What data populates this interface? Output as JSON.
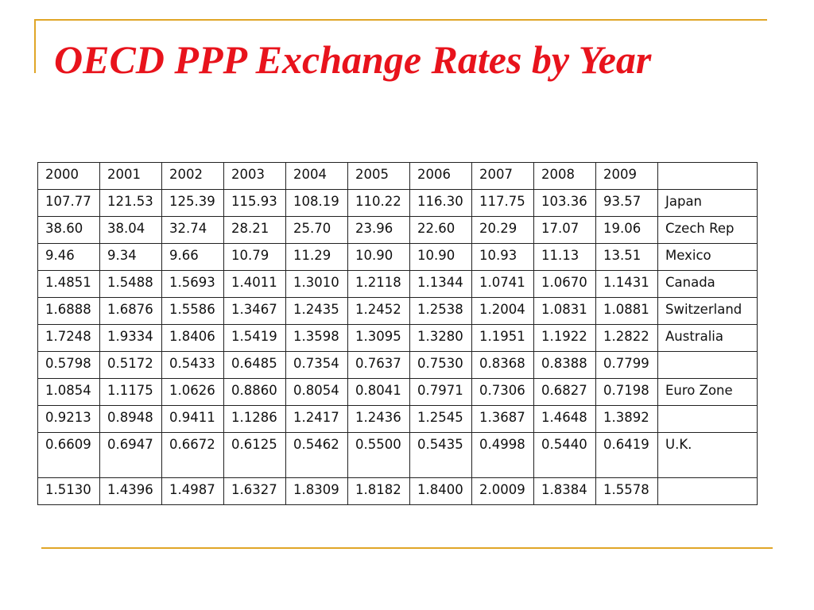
{
  "title": "OECD PPP Exchange Rates by Year",
  "table": {
    "header": [
      "2000",
      "2001",
      "2002",
      "2003",
      "2004",
      "2005",
      "2006",
      "2007",
      "2008",
      "2009",
      ""
    ],
    "rows": [
      {
        "values": [
          "107.77",
          "121.53",
          "125.39",
          "115.93",
          "108.19",
          "110.22",
          "116.30",
          "117.75",
          "103.36",
          "93.57"
        ],
        "country": "Japan"
      },
      {
        "values": [
          "38.60",
          "38.04",
          "32.74",
          "28.21",
          "25.70",
          "23.96",
          "22.60",
          "20.29",
          "17.07",
          "19.06"
        ],
        "country": "Czech Rep"
      },
      {
        "values": [
          "9.46",
          "9.34",
          "9.66",
          "10.79",
          "11.29",
          "10.90",
          "10.90",
          "10.93",
          "11.13",
          "13.51"
        ],
        "country": "Mexico"
      },
      {
        "values": [
          "1.4851",
          "1.5488",
          "1.5693",
          "1.4011",
          "1.3010",
          "1.2118",
          "1.1344",
          "1.0741",
          "1.0670",
          "1.1431"
        ],
        "country": "Canada"
      },
      {
        "values": [
          "1.6888",
          "1.6876",
          "1.5586",
          "1.3467",
          "1.2435",
          "1.2452",
          "1.2538",
          "1.2004",
          "1.0831",
          "1.0881"
        ],
        "country": "Switzerland"
      },
      {
        "values": [
          "1.7248",
          "1.9334",
          "1.8406",
          "1.5419",
          "1.3598",
          "1.3095",
          "1.3280",
          "1.1951",
          "1.1922",
          "1.2822"
        ],
        "country": "Australia"
      },
      {
        "values": [
          "0.5798",
          "0.5172",
          "0.5433",
          "0.6485",
          "0.7354",
          "0.7637",
          "0.7530",
          "0.8368",
          "0.8388",
          "0.7799"
        ],
        "country": ""
      },
      {
        "values": [
          "1.0854",
          "1.1175",
          "1.0626",
          "0.8860",
          "0.8054",
          "0.8041",
          "0.7971",
          "0.7306",
          "0.6827",
          "0.7198"
        ],
        "country": "Euro Zone"
      },
      {
        "values": [
          "0.9213",
          "0.8948",
          "0.9411",
          "1.1286",
          "1.2417",
          "1.2436",
          "1.2545",
          "1.3687",
          "1.4648",
          "1.3892"
        ],
        "country": ""
      },
      {
        "values": [
          "0.6609",
          "0.6947",
          "0.6672",
          "0.6125",
          "0.5462",
          "0.5500",
          "0.5435",
          "0.4998",
          "0.5440",
          "0.6419"
        ],
        "country": "U.K.",
        "tall": true
      },
      {
        "values": [
          "1.5130",
          "1.4396",
          "1.4987",
          "1.6327",
          "1.8309",
          "1.8182",
          "1.8400",
          "2.0009",
          "1.8384",
          "1.5578"
        ],
        "country": ""
      }
    ]
  },
  "colors": {
    "title": "#e8131c",
    "rule": "#e0a628"
  }
}
